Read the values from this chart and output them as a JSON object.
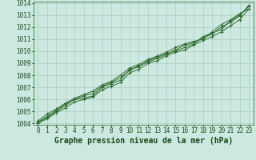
{
  "x": [
    0,
    1,
    2,
    3,
    4,
    5,
    6,
    7,
    8,
    9,
    10,
    11,
    12,
    13,
    14,
    15,
    16,
    17,
    18,
    19,
    20,
    21,
    22,
    23
  ],
  "lines": [
    [
      1004.1,
      1004.5,
      1005.0,
      1005.5,
      1006.0,
      1006.1,
      1006.3,
      1007.0,
      1007.3,
      1007.6,
      1008.5,
      1008.7,
      1009.2,
      1009.5,
      1009.8,
      1010.0,
      1010.3,
      1010.6,
      1011.2,
      1011.5,
      1011.8,
      1012.5,
      1013.0,
      1013.7
    ],
    [
      1004.2,
      1004.8,
      1005.2,
      1005.7,
      1006.1,
      1006.4,
      1006.7,
      1007.2,
      1007.5,
      1008.0,
      1008.6,
      1008.9,
      1009.3,
      1009.6,
      1009.9,
      1010.3,
      1010.6,
      1010.8,
      1011.0,
      1011.6,
      1012.2,
      1012.6,
      1013.1,
      1013.5
    ],
    [
      1004.0,
      1004.4,
      1004.9,
      1005.3,
      1005.8,
      1006.0,
      1006.2,
      1006.8,
      1007.1,
      1007.4,
      1008.2,
      1008.5,
      1009.0,
      1009.2,
      1009.6,
      1009.9,
      1010.1,
      1010.5,
      1010.9,
      1011.2,
      1011.6,
      1012.1,
      1012.6,
      1013.5
    ],
    [
      1004.1,
      1004.6,
      1005.1,
      1005.6,
      1006.0,
      1006.3,
      1006.5,
      1007.1,
      1007.4,
      1007.8,
      1008.4,
      1008.8,
      1009.1,
      1009.4,
      1009.7,
      1010.1,
      1010.5,
      1010.7,
      1011.1,
      1011.4,
      1012.0,
      1012.4,
      1012.9,
      1013.8
    ]
  ],
  "line_color": "#2d6a2d",
  "marker": "+",
  "background_color": "#cce8e0",
  "grid_color": "#aaccbb",
  "xlabel": "Graphe pression niveau de la mer (hPa)",
  "xlabel_color": "#1a4a1a",
  "xlabel_fontsize": 7,
  "tick_color": "#1a4a1a",
  "tick_fontsize": 5.5,
  "ylim": [
    1004,
    1014
  ],
  "xlim": [
    -0.5,
    23.5
  ],
  "yticks": [
    1004,
    1005,
    1006,
    1007,
    1008,
    1009,
    1010,
    1011,
    1012,
    1013,
    1014
  ]
}
